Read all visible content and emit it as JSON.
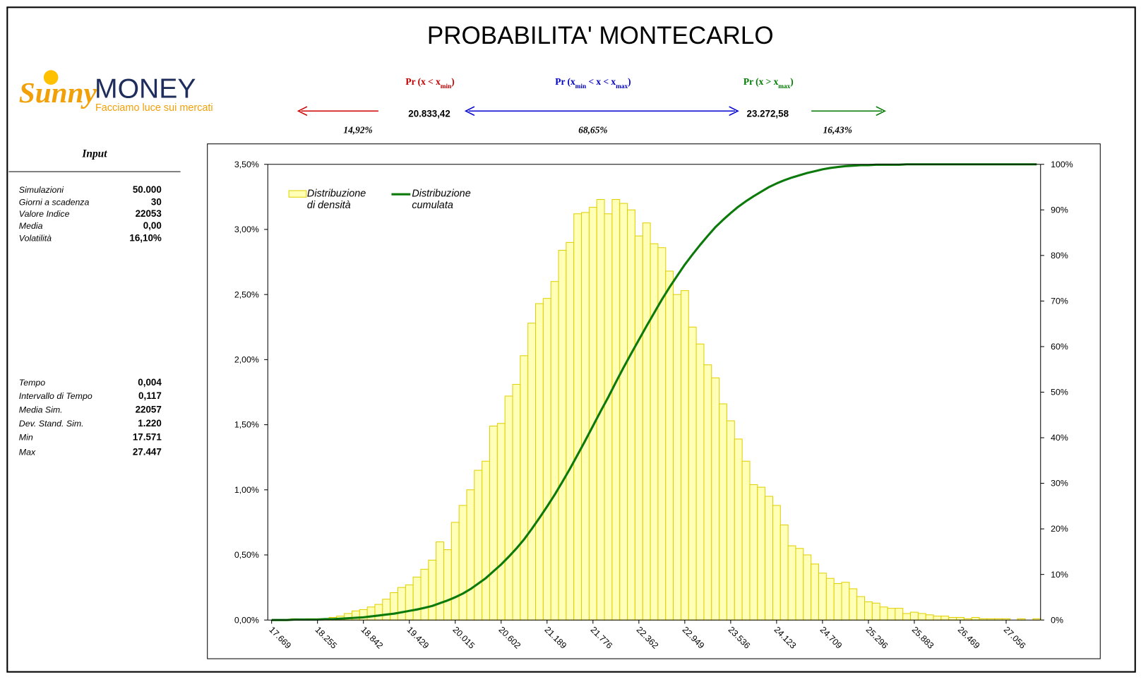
{
  "header": {
    "title": "PROBABILITA' MONTECARLO"
  },
  "logo": {
    "brand": "Sunny",
    "brand2": "MONEY",
    "tagline": "Facciamo luce sui mercati"
  },
  "probabilities": [
    {
      "parts": [
        "Pr (x < x",
        "min",
        ")"
      ],
      "value": "14,92%",
      "color": "#c00000"
    },
    {
      "parts": [
        "Pr (x",
        "min",
        " < x < x",
        "max",
        ")"
      ],
      "value": "68,65%",
      "color": "#0000c0"
    },
    {
      "parts": [
        "Pr (x > x",
        "max",
        ")"
      ],
      "value": "16,43%",
      "color": "#007a00"
    }
  ],
  "thresholds": {
    "xmin": "20.833,42",
    "xmax": "23.272,58"
  },
  "input": {
    "title": "Input",
    "rows": [
      [
        "Simulazioni",
        "50.000"
      ],
      [
        "Giorni a scadenza",
        "30"
      ],
      [
        "Valore Indice",
        "22053"
      ],
      [
        "Media",
        "0,00"
      ],
      [
        "Volatilità",
        "16,10%"
      ]
    ],
    "rows2": [
      [
        "Tempo",
        "0,004"
      ],
      [
        "Intervallo di Tempo",
        "0,117"
      ],
      [
        "Media Sim.",
        "22057"
      ],
      [
        "Dev. Stand. Sim.",
        "1.220"
      ],
      [
        "Min",
        "17.571"
      ],
      [
        "Max",
        "27.447"
      ]
    ]
  },
  "chart_data": {
    "type": "bar",
    "categories": [
      "17.669",
      null,
      null,
      null,
      null,
      null,
      "18.255",
      null,
      null,
      null,
      null,
      null,
      "18.842",
      null,
      null,
      null,
      null,
      null,
      "19.429",
      null,
      null,
      null,
      null,
      null,
      "20.015",
      null,
      null,
      null,
      null,
      null,
      "20.602",
      null,
      null,
      null,
      null,
      null,
      "21.189",
      null,
      null,
      null,
      null,
      null,
      "21.776",
      null,
      null,
      null,
      null,
      null,
      "22.362",
      null,
      null,
      null,
      null,
      null,
      "22.949",
      null,
      null,
      null,
      null,
      null,
      "23.536",
      null,
      null,
      null,
      null,
      null,
      "24.123",
      null,
      null,
      null,
      null,
      null,
      "24.709",
      null,
      null,
      null,
      null,
      null,
      "25.296",
      null,
      null,
      null,
      null,
      null,
      "25.883",
      null,
      null,
      null,
      null,
      null,
      "26.469",
      null,
      null,
      null,
      null,
      null,
      "27.056",
      null,
      null,
      null,
      null
    ],
    "series": [
      {
        "name": "Distribuzione di densità",
        "type": "bar",
        "color": "#ffffb8",
        "stroke": "#e0d000",
        "values": [
          0,
          0,
          0,
          0.01,
          0,
          0.01,
          0.01,
          0.01,
          0.02,
          0.03,
          0.05,
          0.07,
          0.08,
          0.1,
          0.12,
          0.16,
          0.21,
          0.25,
          0.27,
          0.33,
          0.39,
          0.46,
          0.6,
          0.54,
          0.75,
          0.88,
          1.0,
          1.15,
          1.22,
          1.49,
          1.51,
          1.72,
          1.81,
          2.03,
          2.28,
          2.43,
          2.47,
          2.6,
          2.84,
          2.9,
          3.12,
          3.13,
          3.17,
          3.23,
          3.12,
          3.23,
          3.2,
          3.15,
          2.95,
          3.05,
          2.89,
          2.86,
          2.68,
          2.5,
          2.53,
          2.25,
          2.12,
          1.96,
          1.86,
          1.66,
          1.53,
          1.39,
          1.22,
          1.04,
          1.02,
          0.95,
          0.88,
          0.73,
          0.57,
          0.55,
          0.5,
          0.43,
          0.36,
          0.32,
          0.28,
          0.29,
          0.24,
          0.18,
          0.14,
          0.13,
          0.1,
          0.09,
          0.09,
          0.05,
          0.06,
          0.05,
          0.04,
          0.03,
          0.03,
          0.02,
          0.02,
          0.01,
          0.02,
          0.01,
          0.01,
          0.01,
          0.01,
          0,
          0.01,
          0,
          0.01
        ]
      },
      {
        "name": "Distribuzione cumulata",
        "type": "line",
        "axis": "y2",
        "color": "#0b7a0b",
        "values": [
          0,
          0,
          0,
          0.1,
          0.1,
          0.1,
          0.1,
          0.2,
          0.2,
          0.3,
          0.4,
          0.5,
          0.6,
          0.8,
          1.0,
          1.2,
          1.4,
          1.7,
          2.0,
          2.3,
          2.7,
          3.1,
          3.7,
          4.3,
          5.0,
          5.8,
          6.8,
          8.0,
          9.2,
          10.7,
          12.2,
          13.9,
          15.7,
          17.7,
          20.0,
          22.4,
          24.9,
          27.5,
          30.3,
          33.2,
          36.3,
          39.4,
          42.6,
          45.8,
          48.9,
          52.2,
          55.4,
          58.5,
          61.5,
          64.5,
          67.4,
          70.3,
          73.0,
          75.5,
          78.0,
          80.2,
          82.3,
          84.3,
          86.2,
          87.8,
          89.3,
          90.7,
          91.9,
          93.0,
          94.0,
          95.0,
          95.8,
          96.5,
          97.1,
          97.6,
          98.1,
          98.5,
          98.9,
          99.2,
          99.4,
          99.6,
          99.7,
          99.8,
          99.8,
          99.9,
          99.9,
          99.9,
          99.9,
          100,
          100,
          100,
          100,
          100,
          100,
          100,
          100,
          100,
          100,
          100,
          100,
          100,
          100,
          100,
          100,
          100,
          100
        ]
      }
    ],
    "ylim": [
      0,
      3.5
    ],
    "yticks": [
      {
        "value": 0,
        "label": "0,00%"
      },
      {
        "value": 0.5,
        "label": "0,50%"
      },
      {
        "value": 1,
        "label": "1,00%"
      },
      {
        "value": 1.5,
        "label": "1,50%"
      },
      {
        "value": 2,
        "label": "2,00%"
      },
      {
        "value": 2.5,
        "label": "2,50%"
      },
      {
        "value": 3,
        "label": "3,00%"
      },
      {
        "value": 3.5,
        "label": "3,50%"
      }
    ],
    "y2lim": [
      0,
      100
    ],
    "y2ticks": [
      {
        "value": 0,
        "label": "0%"
      },
      {
        "value": 10,
        "label": "10%"
      },
      {
        "value": 20,
        "label": "20%"
      },
      {
        "value": 30,
        "label": "30%"
      },
      {
        "value": 40,
        "label": "40%"
      },
      {
        "value": 50,
        "label": "50%"
      },
      {
        "value": 60,
        "label": "60%"
      },
      {
        "value": 70,
        "label": "70%"
      },
      {
        "value": 80,
        "label": "80%"
      },
      {
        "value": 90,
        "label": "90%"
      },
      {
        "value": 100,
        "label": "100%"
      }
    ],
    "grid": false
  }
}
